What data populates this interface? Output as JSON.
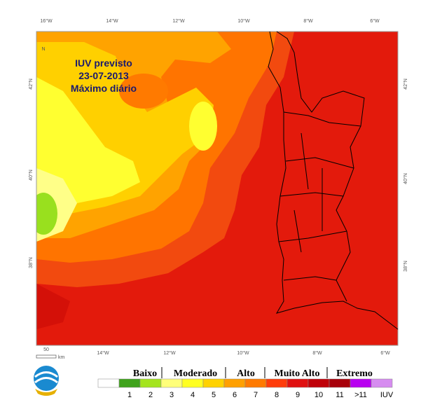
{
  "title": [
    "IUV previsto",
    "23-07-2013",
    "Máximo diário"
  ],
  "map": {
    "top_labels": [
      "16°W",
      "14°W",
      "12°W",
      "10°W",
      "8°W",
      "6°W"
    ],
    "bottom_labels": [
      "14°W",
      "12°W",
      "10°W",
      "8°W",
      "6°W"
    ],
    "left_labels": [
      "42°N",
      "40°N",
      "38°N"
    ],
    "right_labels": [
      "42°N",
      "40°N",
      "38°N"
    ],
    "north": "N",
    "scale_value": "50",
    "scale_unit": "km"
  },
  "legend": {
    "groups": [
      "Baixo",
      "Moderado",
      "Alto",
      "Muito Alto",
      "Extremo"
    ],
    "colors": [
      "#ffffff",
      "#3fa31c",
      "#a4e41e",
      "#ffff7a",
      "#ffff22",
      "#ffd200",
      "#ffa000",
      "#ff7a00",
      "#ff3c0a",
      "#e01010",
      "#c00008",
      "#a8000a",
      "#b800f0",
      "#d68cf0"
    ],
    "labels": [
      "1",
      "2",
      "3",
      "4",
      "5",
      "6",
      "7",
      "8",
      "9",
      "10",
      "11",
      ">11"
    ],
    "unit": "IUV"
  }
}
